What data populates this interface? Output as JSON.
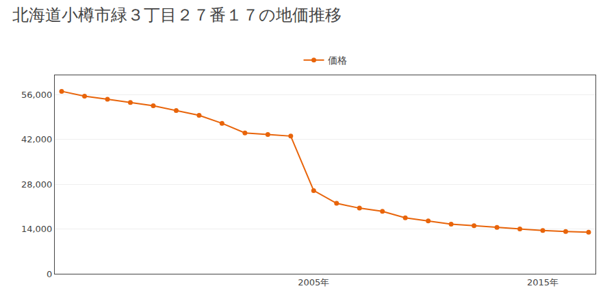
{
  "chart_data": {
    "type": "line",
    "title": "北海道小樽市緑３丁目２７番１７の地価推移",
    "x": [
      1994,
      1995,
      1996,
      1997,
      1998,
      1999,
      2000,
      2001,
      2002,
      2003,
      2004,
      2005,
      2006,
      2007,
      2008,
      2009,
      2010,
      2011,
      2012,
      2013,
      2014,
      2015,
      2016,
      2017
    ],
    "series": [
      {
        "name": "価格",
        "color": "#E8640A",
        "marker": "circle",
        "values": [
          57000,
          55500,
          54500,
          53500,
          52500,
          51000,
          49500,
          47000,
          44000,
          43500,
          43000,
          26000,
          22000,
          20500,
          19500,
          17500,
          16500,
          15500,
          15000,
          14500,
          14000,
          13500,
          13200,
          13000
        ]
      }
    ],
    "xlim": [
      1993.7,
      2017.3
    ],
    "xticks": [
      {
        "value": 2005,
        "label": "2005年"
      },
      {
        "value": 2015,
        "label": "2015年"
      }
    ],
    "ylim": [
      0,
      62000
    ],
    "yticks": [
      0,
      {
        "value": 14000,
        "label": "14,000"
      },
      {
        "value": 28000,
        "label": "28,000"
      },
      {
        "value": 42000,
        "label": "42,000"
      },
      {
        "value": 56000,
        "label": "56,000"
      }
    ],
    "grid": "y",
    "legend": "top"
  }
}
